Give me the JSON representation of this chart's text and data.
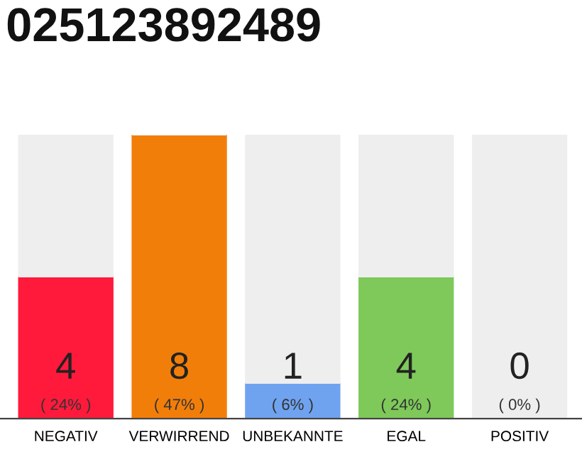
{
  "chart_data": {
    "type": "bar",
    "title": "025123892489",
    "categories": [
      "NEGATIV",
      "VERWIRREND",
      "UNBEKANNTE",
      "EGAL",
      "POSITIV"
    ],
    "stacked": true,
    "series": [
      {
        "colors": [
          "#ff1a3c",
          "#f27e0a",
          "#6fa3f0",
          "#7ec95a",
          "#7ec95a"
        ],
        "values": [
          4,
          8,
          1,
          4,
          0
        ],
        "value_labels": [
          "4\n( 24% )",
          "8\n( 47% )",
          "1\n( 6% )",
          "4\n( 24% )",
          "0\n( 0% )"
        ]
      },
      {
        "color": "#eeeeee",
        "values": [
          4,
          0,
          7,
          4,
          8
        ]
      }
    ],
    "grid": false,
    "legend": false
  }
}
